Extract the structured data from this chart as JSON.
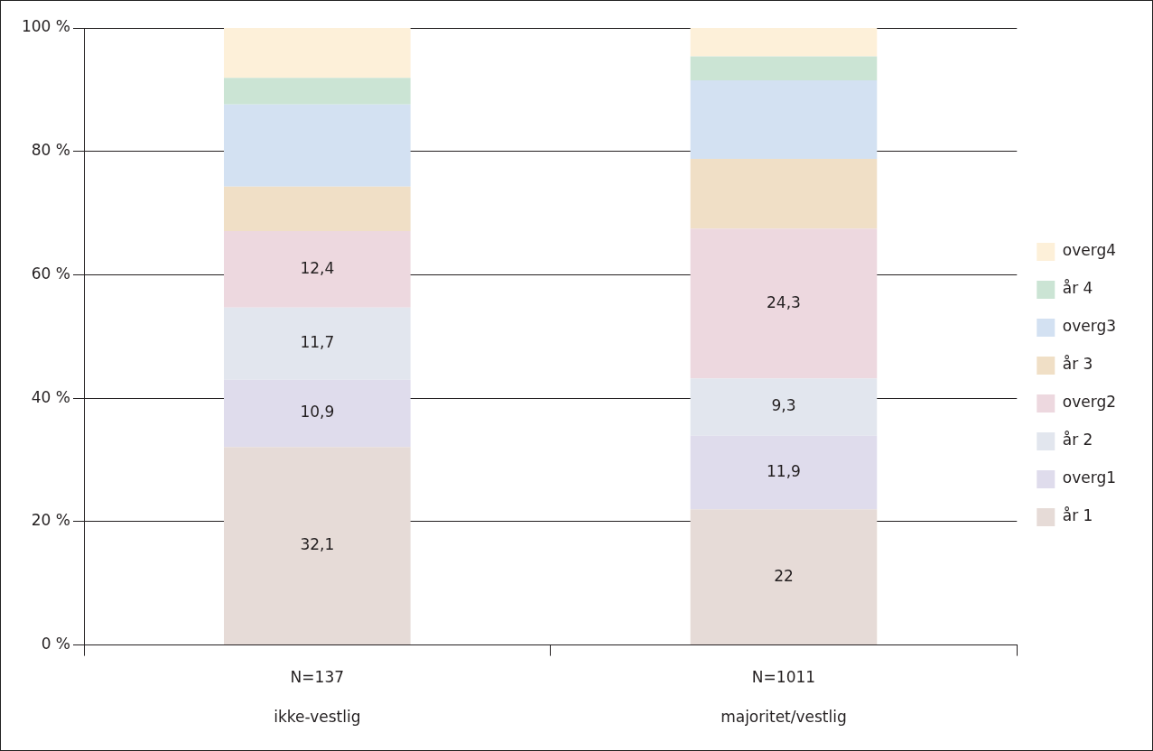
{
  "chart_data": {
    "type": "bar",
    "stacked": true,
    "categories": [
      "N=137\nikke-vestlig",
      "N=1011\nmajoritet/vestlig"
    ],
    "series": [
      {
        "name": "år 1",
        "color": "#e6dbd7",
        "values": [
          32.1,
          22
        ],
        "value_labels": [
          "32,1",
          "22"
        ]
      },
      {
        "name": "overg1",
        "color": "#dfdcec",
        "values": [
          10.9,
          11.9
        ],
        "value_labels": [
          "10,9",
          "11,9"
        ]
      },
      {
        "name": "år 2",
        "color": "#e2e6ee",
        "values": [
          11.7,
          9.3
        ],
        "value_labels": [
          "11,7",
          "9,3"
        ]
      },
      {
        "name": "overg2",
        "color": "#edd8df",
        "values": [
          12.4,
          24.3
        ],
        "value_labels": [
          "12,4",
          "24,3"
        ]
      },
      {
        "name": "år 3",
        "color": "#f0dfc6",
        "values": [
          7.2,
          11.3
        ]
      },
      {
        "name": "overg3",
        "color": "#d3e1f2",
        "values": [
          13.3,
          12.7
        ]
      },
      {
        "name": "år 4",
        "color": "#cbe4d4",
        "values": [
          4.3,
          3.9
        ]
      },
      {
        "name": "overg4",
        "color": "#fdf0d9",
        "values": [
          8.1,
          4.6
        ]
      }
    ],
    "ylim": [
      0,
      100
    ],
    "yticks": [
      {
        "value": 0,
        "label": "0 %"
      },
      {
        "value": 20,
        "label": "20 %"
      },
      {
        "value": 40,
        "label": "40 %"
      },
      {
        "value": 60,
        "label": "60 %"
      },
      {
        "value": 80,
        "label": "80 %"
      },
      {
        "value": 100,
        "label": "100 %"
      }
    ],
    "grid": "y",
    "legend": "right"
  }
}
